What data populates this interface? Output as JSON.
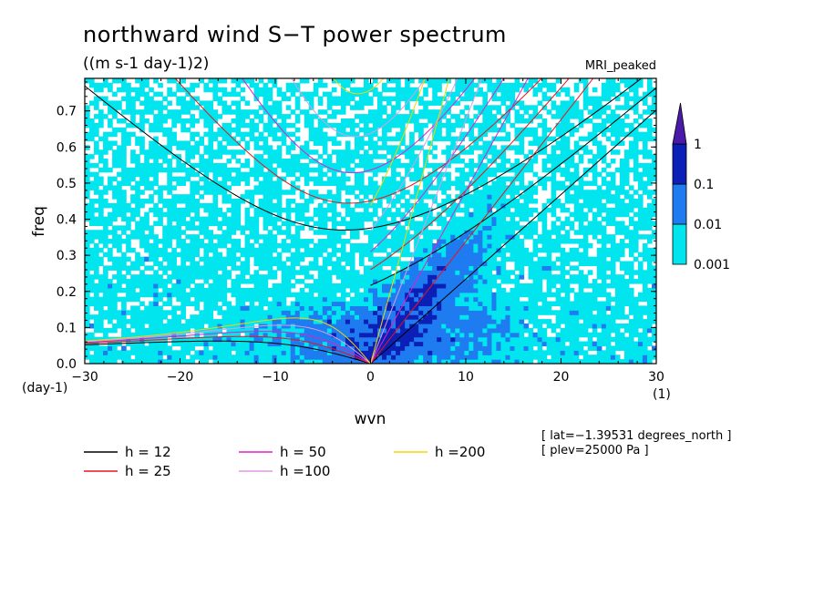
{
  "chart_data": {
    "type": "heatmap",
    "title": "northward wind S−T power spectrum",
    "units": "((m s-1 day-1)2)",
    "model": "MRI_peaked",
    "xlabel": "wvn",
    "ylabel": "freq",
    "x_unit": "(1)",
    "y_unit": "(day-1)",
    "xlim": [
      -30,
      30
    ],
    "ylim": [
      0,
      0.79
    ],
    "x_ticks": [
      -30,
      -20,
      -10,
      0,
      10,
      20,
      30
    ],
    "x_tick_labels": [
      "−30",
      "−20",
      "−10",
      "0",
      "10",
      "20",
      "30"
    ],
    "y_ticks": [
      0,
      0.1,
      0.2,
      0.3,
      0.4,
      0.5,
      0.6,
      0.7
    ],
    "y_tick_labels": [
      "0.0",
      "0.1",
      "0.2",
      "0.3",
      "0.4",
      "0.5",
      "0.6",
      "0.7"
    ],
    "colorbar": {
      "levels": [
        0.001,
        0.01,
        0.1,
        1
      ],
      "labels": [
        "0.001",
        "0.01",
        "0.1",
        "1"
      ],
      "colors": [
        "#00e5ee",
        "#1e7bf0",
        "#0c1fb6",
        "#4a1aa8"
      ]
    },
    "dispersion_curves": [
      {
        "name": "h = 12",
        "h": 12,
        "color": "#000000"
      },
      {
        "name": "h = 25",
        "h": 25,
        "color": "#e8141e"
      },
      {
        "name": "h = 50",
        "h": 50,
        "color": "#e020c8"
      },
      {
        "name": "h =100",
        "h": 100,
        "color": "#dc9ce0"
      },
      {
        "name": "h =200",
        "h": 200,
        "color": "#f0d800"
      }
    ],
    "annotations": [
      "[ lat=−1.39531 degrees_north ]",
      "[ plev=25000 Pa ]"
    ]
  }
}
